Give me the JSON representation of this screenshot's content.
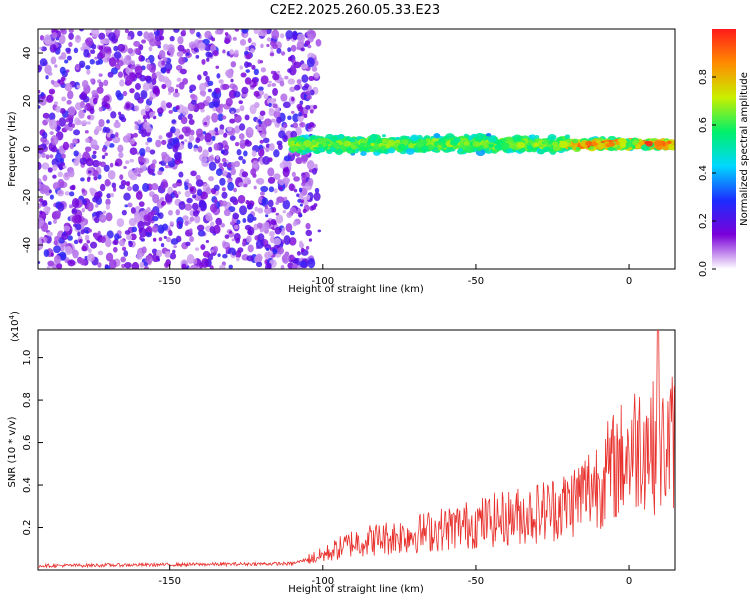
{
  "title": "C2E2.2025.260.05.33.E23",
  "chart_data": [
    {
      "type": "heatmap",
      "title": "C2E2.2025.260.05.33.E23",
      "xlabel": "Height of straight line (km)",
      "ylabel": "Frequency (Hz)",
      "xlim": [
        -193,
        15
      ],
      "ylim": [
        -50,
        50
      ],
      "x_ticks": [
        -150,
        -100,
        -50,
        0
      ],
      "y_ticks": [
        -40,
        -20,
        0,
        20,
        40
      ],
      "noise_region_x": [
        -193,
        -100
      ],
      "signal_region_x": [
        -110,
        15
      ],
      "signal_center_freq_hz": 2,
      "colorbar": {
        "label": "Normalized spectral amplitude",
        "range": [
          0,
          1
        ],
        "ticks": [
          "0.0",
          "0.2",
          "0.4",
          "0.6",
          "0.8"
        ],
        "colormap": [
          "#ffffff",
          "#7a00d8",
          "#1c2cff",
          "#00d8ff",
          "#00f06a",
          "#c8f000",
          "#ff8c00",
          "#ff1a1a"
        ]
      }
    },
    {
      "type": "line",
      "xlabel": "Height of straight line (km)",
      "ylabel": "SNR (10 * v/v)",
      "y_multiplier": "(x10",
      "y_multiplier_exp": "4",
      "y_multiplier_close": ")",
      "xlim": [
        -193,
        15
      ],
      "ylim": [
        0,
        1.13
      ],
      "x_ticks": [
        -150,
        -100,
        -50,
        0
      ],
      "y_ticks": [
        "0.2",
        "0.4",
        "0.6",
        "0.8",
        "1.0"
      ],
      "color": "#e8302c",
      "trend": [
        {
          "x": -193,
          "y": 0.02
        },
        {
          "x": -110,
          "y": 0.03
        },
        {
          "x": -100,
          "y": 0.07
        },
        {
          "x": -90,
          "y": 0.13
        },
        {
          "x": -70,
          "y": 0.17
        },
        {
          "x": -50,
          "y": 0.22
        },
        {
          "x": -30,
          "y": 0.27
        },
        {
          "x": -20,
          "y": 0.31
        },
        {
          "x": -10,
          "y": 0.42
        },
        {
          "x": 0,
          "y": 0.55
        },
        {
          "x": 5,
          "y": 0.62
        },
        {
          "x": 10,
          "y": 0.55
        },
        {
          "x": 15,
          "y": 0.62
        }
      ],
      "peak": {
        "x": 9.5,
        "y": 1.13
      }
    }
  ]
}
